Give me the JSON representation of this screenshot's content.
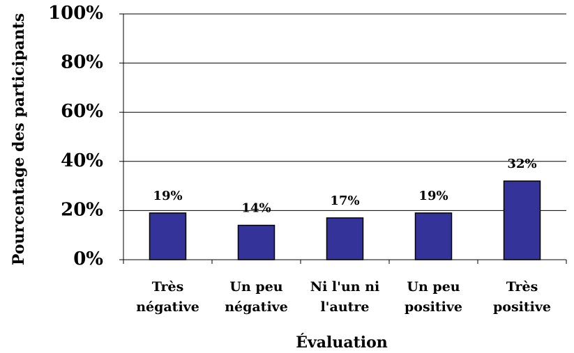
{
  "chart_data": {
    "type": "bar",
    "categories": [
      "Très négative",
      "Un peu négative",
      "Ni l'un ni l'autre",
      "Un peu positive",
      "Très positive"
    ],
    "values": [
      19,
      14,
      17,
      19,
      32
    ],
    "value_labels": [
      "19%",
      "14%",
      "17%",
      "19%",
      "32%"
    ],
    "color": "#333399",
    "xlabel": "Évaluation",
    "ylabel": "Pourcentage des participants",
    "ylim": [
      0,
      100
    ],
    "yticks": [
      {
        "value": 0,
        "label": "0%"
      },
      {
        "value": 20,
        "label": "20%"
      },
      {
        "value": 40,
        "label": "40%"
      },
      {
        "value": 60,
        "label": "60%"
      },
      {
        "value": 80,
        "label": "80%"
      },
      {
        "value": 100,
        "label": "100%"
      }
    ],
    "grid": true
  }
}
